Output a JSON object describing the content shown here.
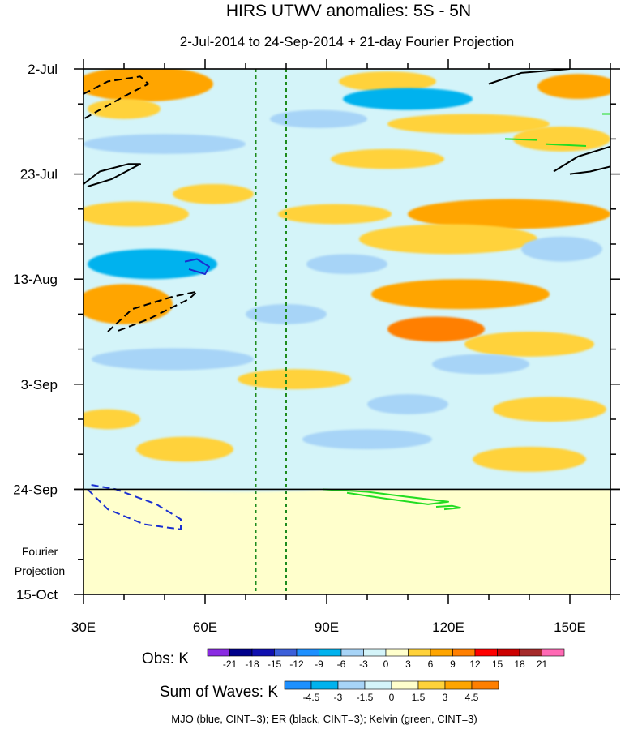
{
  "chart_data": {
    "type": "heatmap",
    "title": "HIRS UTWV anomalies: 5S - 5N",
    "subtitle": "2-Jul-2014 to 24-Sep-2014 + 21-day Fourier Projection",
    "x_axis": {
      "range": [
        30,
        160
      ],
      "ticks": [
        30,
        60,
        90,
        120,
        150
      ],
      "tick_labels": [
        "30E",
        "60E",
        "90E",
        "120E",
        "150E"
      ],
      "minor_step": 10
    },
    "y_axis": {
      "range_days": [
        0,
        105
      ],
      "ticks": [
        0,
        21,
        42,
        63,
        84,
        105
      ],
      "tick_labels": [
        "2-Jul",
        "23-Jul",
        "13-Aug",
        "3-Sep",
        "24-Sep",
        "15-Oct"
      ],
      "minor_step_days": 7,
      "reversed": true
    },
    "projection_start_day": 84,
    "projection_label": [
      "Fourier",
      "Projection"
    ],
    "vertical_lines_lon": [
      72.5,
      80
    ],
    "obs_legend": {
      "label": "Obs: K",
      "levels": [
        "-21",
        "-18",
        "-15",
        "-12",
        "-9",
        "-6",
        "-3",
        "0",
        "3",
        "6",
        "9",
        "12",
        "15",
        "18",
        "21"
      ],
      "colors": [
        "#8a2be2",
        "#00008b",
        "#1010b0",
        "#3b5fd9",
        "#1e90ff",
        "#00b2ee",
        "#a7d4f7",
        "#d4f4f9",
        "#ffffcc",
        "#ffd23a",
        "#ffa500",
        "#ff7f00",
        "#ff0000",
        "#cc0000",
        "#a52a2a",
        "#ff69b4"
      ]
    },
    "waves_legend": {
      "label": "Sum of Waves: K",
      "levels": [
        "-4.5",
        "-3",
        "-1.5",
        "0",
        "1.5",
        "3",
        "4.5"
      ],
      "colors": [
        "#1e90ff",
        "#00b2ee",
        "#a7d4f7",
        "#d4f4f9",
        "#ffffcc",
        "#ffd23a",
        "#ffa500",
        "#ff7f00"
      ]
    },
    "footer": "MJO (blue, CINT=3); ER (black, CINT=3); Kelvin (green, CINT=3)",
    "contours": {
      "er": [
        {
          "style": "dashed",
          "pts": [
            [
              30,
              5
            ],
            [
              36,
              2.5
            ],
            [
              44,
              1.5
            ],
            [
              46,
              3
            ],
            [
              40,
              5.5
            ],
            [
              30,
              10
            ]
          ]
        },
        {
          "style": "solid",
          "pts": [
            [
              30,
              23
            ],
            [
              34,
              20.5
            ],
            [
              41,
              19
            ],
            [
              44,
              19
            ],
            [
              37,
              22
            ],
            [
              31,
              23.5
            ]
          ]
        },
        {
          "style": "dashed",
          "pts": [
            [
              36,
              52.5
            ],
            [
              42,
              48
            ],
            [
              52,
              45.5
            ],
            [
              58,
              44.5
            ],
            [
              56,
              46
            ],
            [
              46,
              50
            ],
            [
              38,
              52.5
            ]
          ]
        },
        {
          "style": "solid",
          "pts": [
            [
              130,
              3
            ],
            [
              138,
              0.8
            ],
            [
              150,
              0
            ]
          ]
        },
        {
          "style": "solid",
          "pts": [
            [
              146,
              20.5
            ],
            [
              152,
              17.5
            ],
            [
              160,
              15.5
            ]
          ]
        },
        {
          "style": "solid",
          "pts": [
            [
              150,
              21
            ],
            [
              155,
              20.5
            ],
            [
              160,
              19.5
            ]
          ]
        }
      ],
      "mjo": [
        {
          "style": "solid",
          "pts": [
            [
              55,
              38.5
            ],
            [
              58,
              38
            ],
            [
              61,
              39.5
            ],
            [
              60,
              41
            ],
            [
              56,
              40
            ]
          ]
        },
        {
          "style": "dashed",
          "pts": [
            [
              31,
              84
            ],
            [
              36,
              88
            ],
            [
              45,
              91
            ],
            [
              54,
              92
            ],
            [
              54,
              90
            ],
            [
              48,
              87
            ],
            [
              38,
              84
            ],
            [
              31,
              83
            ]
          ]
        }
      ],
      "kelvin": [
        {
          "style": "solid",
          "pts": [
            [
              89,
              84
            ],
            [
              100,
              84.5
            ],
            [
              110,
              85.5
            ],
            [
              120,
              86.5
            ],
            [
              115,
              87
            ],
            [
              104,
              85.8
            ],
            [
              95,
              84.7
            ]
          ]
        },
        {
          "style": "solid",
          "pts": [
            [
              117,
              87.5
            ],
            [
              121,
              87.3
            ],
            [
              123,
              87.7
            ],
            [
              119,
              88
            ]
          ]
        },
        {
          "style": "solid",
          "pts": [
            [
              134,
              14
            ],
            [
              142,
              14.2
            ]
          ]
        },
        {
          "style": "solid",
          "pts": [
            [
              144,
              15
            ],
            [
              154,
              15.4
            ]
          ]
        },
        {
          "style": "solid",
          "pts": [
            [
              158,
              9
            ],
            [
              160,
              9
            ]
          ]
        }
      ]
    },
    "anomaly_features": [
      {
        "lon": 45,
        "day": 3,
        "rlon": 17,
        "rday": 3.5,
        "value": 6
      },
      {
        "lon": 105,
        "day": 2.5,
        "rlon": 12,
        "rday": 2,
        "value": 4
      },
      {
        "lon": 152,
        "day": 3.5,
        "rlon": 10,
        "rday": 2.5,
        "value": 8
      },
      {
        "lon": 110,
        "day": 6,
        "rlon": 16,
        "rday": 2.2,
        "value": -7
      },
      {
        "lon": 40,
        "day": 8,
        "rlon": 9,
        "rday": 2,
        "value": 4
      },
      {
        "lon": 125,
        "day": 11,
        "rlon": 20,
        "rday": 2,
        "value": 4
      },
      {
        "lon": 88,
        "day": 10,
        "rlon": 12,
        "rday": 1.8,
        "value": -4
      },
      {
        "lon": 148,
        "day": 14,
        "rlon": 12,
        "rday": 2.5,
        "value": 4
      },
      {
        "lon": 50,
        "day": 15,
        "rlon": 20,
        "rday": 2,
        "value": -4
      },
      {
        "lon": 105,
        "day": 18,
        "rlon": 14,
        "rday": 2,
        "value": 4
      },
      {
        "lon": 62,
        "day": 25,
        "rlon": 10,
        "rday": 2,
        "value": 4
      },
      {
        "lon": 42,
        "day": 29,
        "rlon": 14,
        "rday": 2.5,
        "value": 5
      },
      {
        "lon": 135,
        "day": 29,
        "rlon": 25,
        "rday": 3,
        "value": 6
      },
      {
        "lon": 92,
        "day": 29,
        "rlon": 14,
        "rday": 2,
        "value": 4
      },
      {
        "lon": 120,
        "day": 34,
        "rlon": 22,
        "rday": 3,
        "value": 5
      },
      {
        "lon": 148,
        "day": 36,
        "rlon": 10,
        "rday": 2.5,
        "value": -4
      },
      {
        "lon": 47,
        "day": 39,
        "rlon": 16,
        "rday": 3,
        "value": -9
      },
      {
        "lon": 95,
        "day": 39,
        "rlon": 10,
        "rday": 2,
        "value": -4
      },
      {
        "lon": 40,
        "day": 47,
        "rlon": 12,
        "rday": 4,
        "value": 8
      },
      {
        "lon": 123,
        "day": 45,
        "rlon": 22,
        "rday": 3,
        "value": 6
      },
      {
        "lon": 117,
        "day": 52,
        "rlon": 12,
        "rday": 2.5,
        "value": 10
      },
      {
        "lon": 80,
        "day": 49,
        "rlon": 10,
        "rday": 2,
        "value": -4
      },
      {
        "lon": 140,
        "day": 55,
        "rlon": 16,
        "rday": 2.5,
        "value": 5
      },
      {
        "lon": 52,
        "day": 58,
        "rlon": 20,
        "rday": 2.2,
        "value": -6
      },
      {
        "lon": 128,
        "day": 59,
        "rlon": 12,
        "rday": 2,
        "value": -4
      },
      {
        "lon": 82,
        "day": 62,
        "rlon": 14,
        "rday": 2,
        "value": 4
      },
      {
        "lon": 110,
        "day": 67,
        "rlon": 10,
        "rday": 2,
        "value": -4
      },
      {
        "lon": 145,
        "day": 68,
        "rlon": 14,
        "rday": 2.5,
        "value": 4
      },
      {
        "lon": 36,
        "day": 70,
        "rlon": 8,
        "rday": 2,
        "value": 4
      },
      {
        "lon": 55,
        "day": 76,
        "rlon": 12,
        "rday": 2.5,
        "value": 4
      },
      {
        "lon": 100,
        "day": 74,
        "rlon": 16,
        "rday": 2,
        "value": -4
      },
      {
        "lon": 140,
        "day": 78,
        "rlon": 14,
        "rday": 2.5,
        "value": 4
      },
      {
        "lon": 70,
        "day": 83,
        "rlon": 30,
        "rday": 1.5,
        "value": -3
      },
      {
        "lon": 48,
        "day": 93,
        "rlon": 14,
        "rday": 2.5,
        "value": 2
      }
    ]
  }
}
